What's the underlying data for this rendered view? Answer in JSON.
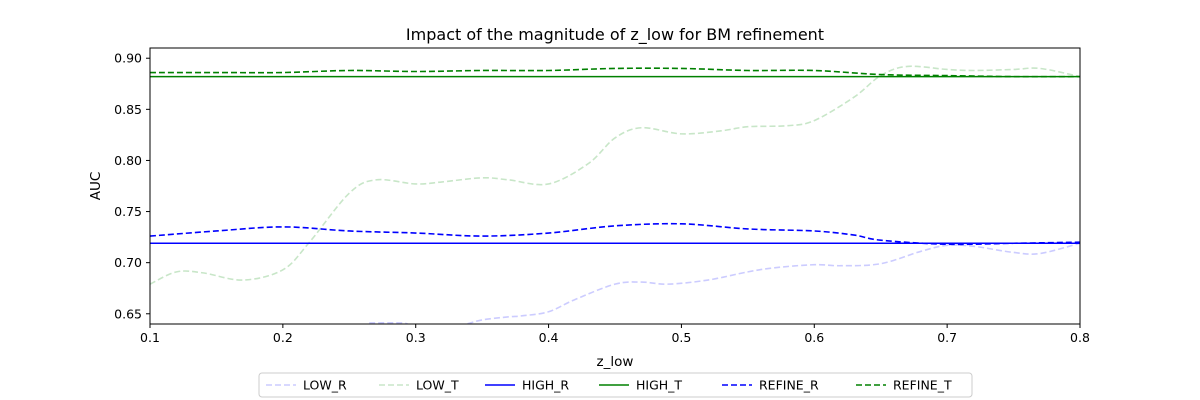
{
  "chart_data": {
    "type": "line",
    "title": "Impact of the magnitude of z_low for BM refinement",
    "xlabel": "z_low",
    "ylabel": "AUC",
    "xlim": [
      0.1,
      0.8
    ],
    "ylim": [
      0.64,
      0.91
    ],
    "xticks": [
      "0.1",
      "0.2",
      "0.3",
      "0.4",
      "0.5",
      "0.6",
      "0.7",
      "0.8"
    ],
    "yticks": [
      "0.65",
      "0.70",
      "0.75",
      "0.80",
      "0.85",
      "0.90"
    ],
    "grid": false,
    "legend_position": "bottom-center",
    "series": [
      {
        "name": "LOW_R",
        "color": "#ccccff",
        "dash": "dashed",
        "x": [
          0.265,
          0.29,
          0.3,
          0.33,
          0.35,
          0.37,
          0.38,
          0.4,
          0.42,
          0.45,
          0.47,
          0.49,
          0.52,
          0.55,
          0.57,
          0.6,
          0.62,
          0.65,
          0.68,
          0.7,
          0.72,
          0.75,
          0.77,
          0.8
        ],
        "y": [
          0.641,
          0.641,
          0.638,
          0.638,
          0.644,
          0.647,
          0.648,
          0.652,
          0.664,
          0.679,
          0.681,
          0.679,
          0.683,
          0.691,
          0.695,
          0.698,
          0.697,
          0.699,
          0.711,
          0.717,
          0.716,
          0.71,
          0.709,
          0.719
        ]
      },
      {
        "name": "LOW_T",
        "color": "#c8e6c8",
        "dash": "dashed",
        "x": [
          0.1,
          0.12,
          0.14,
          0.17,
          0.2,
          0.22,
          0.25,
          0.27,
          0.3,
          0.32,
          0.35,
          0.37,
          0.4,
          0.43,
          0.45,
          0.47,
          0.5,
          0.53,
          0.55,
          0.58,
          0.6,
          0.63,
          0.65,
          0.67,
          0.7,
          0.72,
          0.75,
          0.77,
          0.8
        ],
        "y": [
          0.679,
          0.691,
          0.69,
          0.683,
          0.693,
          0.72,
          0.768,
          0.781,
          0.777,
          0.779,
          0.783,
          0.781,
          0.777,
          0.797,
          0.822,
          0.832,
          0.826,
          0.829,
          0.833,
          0.834,
          0.839,
          0.862,
          0.883,
          0.892,
          0.889,
          0.888,
          0.889,
          0.89,
          0.882
        ]
      },
      {
        "name": "HIGH_R",
        "color": "#0000ff",
        "dash": "solid",
        "x": [
          0.1,
          0.8
        ],
        "y": [
          0.719,
          0.719
        ]
      },
      {
        "name": "HIGH_T",
        "color": "#008000",
        "dash": "solid",
        "x": [
          0.1,
          0.8
        ],
        "y": [
          0.882,
          0.882
        ]
      },
      {
        "name": "REFINE_R",
        "color": "#0000ff",
        "dash": "dashed",
        "x": [
          0.1,
          0.15,
          0.2,
          0.25,
          0.3,
          0.35,
          0.4,
          0.45,
          0.5,
          0.55,
          0.6,
          0.63,
          0.65,
          0.7,
          0.75,
          0.8
        ],
        "y": [
          0.726,
          0.731,
          0.735,
          0.731,
          0.729,
          0.726,
          0.729,
          0.736,
          0.738,
          0.733,
          0.731,
          0.727,
          0.722,
          0.718,
          0.719,
          0.72
        ]
      },
      {
        "name": "REFINE_T",
        "color": "#008000",
        "dash": "dashed",
        "x": [
          0.1,
          0.15,
          0.2,
          0.25,
          0.3,
          0.35,
          0.4,
          0.45,
          0.5,
          0.55,
          0.6,
          0.65,
          0.7,
          0.75,
          0.8
        ],
        "y": [
          0.886,
          0.886,
          0.886,
          0.888,
          0.887,
          0.888,
          0.888,
          0.89,
          0.89,
          0.888,
          0.888,
          0.884,
          0.883,
          0.882,
          0.882
        ]
      }
    ]
  }
}
